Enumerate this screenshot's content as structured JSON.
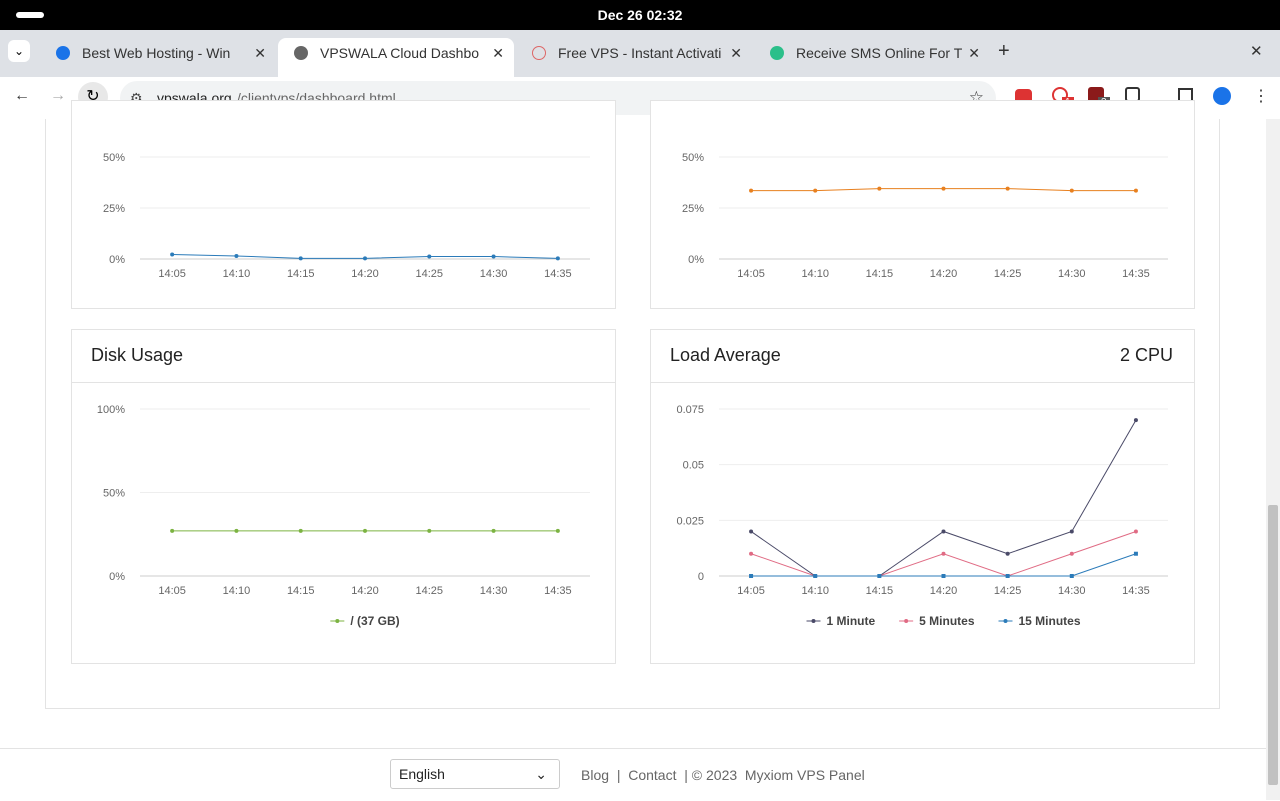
{
  "system_bar": {
    "clock": "Dec 26  02:32"
  },
  "tabs": [
    {
      "title": "Best Web Hosting - Win",
      "active": false
    },
    {
      "title": "VPSWALA Cloud Dashbo",
      "active": true
    },
    {
      "title": "Free VPS - Instant Activati",
      "active": false
    },
    {
      "title": "Receive SMS Online For T",
      "active": false
    }
  ],
  "address_bar": {
    "host": "vpswala.org",
    "path": "/clientvps/dashboard.html"
  },
  "extension_badges": [
    "1",
    "3"
  ],
  "chart_data": [
    {
      "type": "line",
      "categories": [
        "14:05",
        "14:10",
        "14:15",
        "14:20",
        "14:25",
        "14:30",
        "14:35"
      ],
      "series": [
        {
          "color": "#2b7bb9",
          "values": [
            2.2,
            1.5,
            0.3,
            0.3,
            1.2,
            1.2,
            0.3
          ]
        }
      ],
      "ylim": [
        0,
        50
      ],
      "yticks": [
        {
          "value": 0,
          "label": "0%"
        },
        {
          "value": 25,
          "label": "25%"
        },
        {
          "value": 50,
          "label": "50%"
        }
      ],
      "grid": true
    },
    {
      "type": "line",
      "categories": [
        "14:05",
        "14:10",
        "14:15",
        "14:20",
        "14:25",
        "14:30",
        "14:35"
      ],
      "series": [
        {
          "color": "#e8801f",
          "values": [
            33.5,
            33.5,
            34.5,
            34.5,
            34.5,
            33.5,
            33.5
          ]
        }
      ],
      "ylim": [
        0,
        50
      ],
      "yticks": [
        {
          "value": 0,
          "label": "0%"
        },
        {
          "value": 25,
          "label": "25%"
        },
        {
          "value": 50,
          "label": "50%"
        }
      ],
      "grid": true
    },
    {
      "type": "line",
      "title": "Disk Usage",
      "categories": [
        "14:05",
        "14:10",
        "14:15",
        "14:20",
        "14:25",
        "14:30",
        "14:35"
      ],
      "series": [
        {
          "name": "/ (37 GB)",
          "color": "#7cb342",
          "values": [
            27,
            27,
            27,
            27,
            27,
            27,
            27
          ]
        }
      ],
      "ylim": [
        0,
        100
      ],
      "yticks": [
        {
          "value": 0,
          "label": "0%"
        },
        {
          "value": 50,
          "label": "50%"
        },
        {
          "value": 100,
          "label": "100%"
        }
      ],
      "grid": true
    },
    {
      "type": "line",
      "title": "Load Average",
      "subtitle": "2 CPU",
      "categories": [
        "14:05",
        "14:10",
        "14:15",
        "14:20",
        "14:25",
        "14:30",
        "14:35"
      ],
      "series": [
        {
          "name": "1 Minute",
          "color": "#4a4a68",
          "values": [
            0.02,
            0,
            0,
            0.02,
            0.01,
            0.02,
            0.07
          ]
        },
        {
          "name": "5 Minutes",
          "color": "#e06b84",
          "values": [
            0.01,
            0,
            0,
            0.01,
            0,
            0.01,
            0.02
          ]
        },
        {
          "name": "15 Minutes",
          "color": "#2b7bb9",
          "values": [
            0,
            0,
            0,
            0,
            0,
            0,
            0.01
          ]
        }
      ],
      "ylim": [
        0,
        0.075
      ],
      "yticks": [
        0,
        0.025,
        0.05,
        0.075
      ],
      "grid": true
    }
  ],
  "footer": {
    "language": "English",
    "items": [
      "Blog",
      "|",
      "Contact",
      "| © 2023  Myxiom VPS Panel"
    ]
  }
}
